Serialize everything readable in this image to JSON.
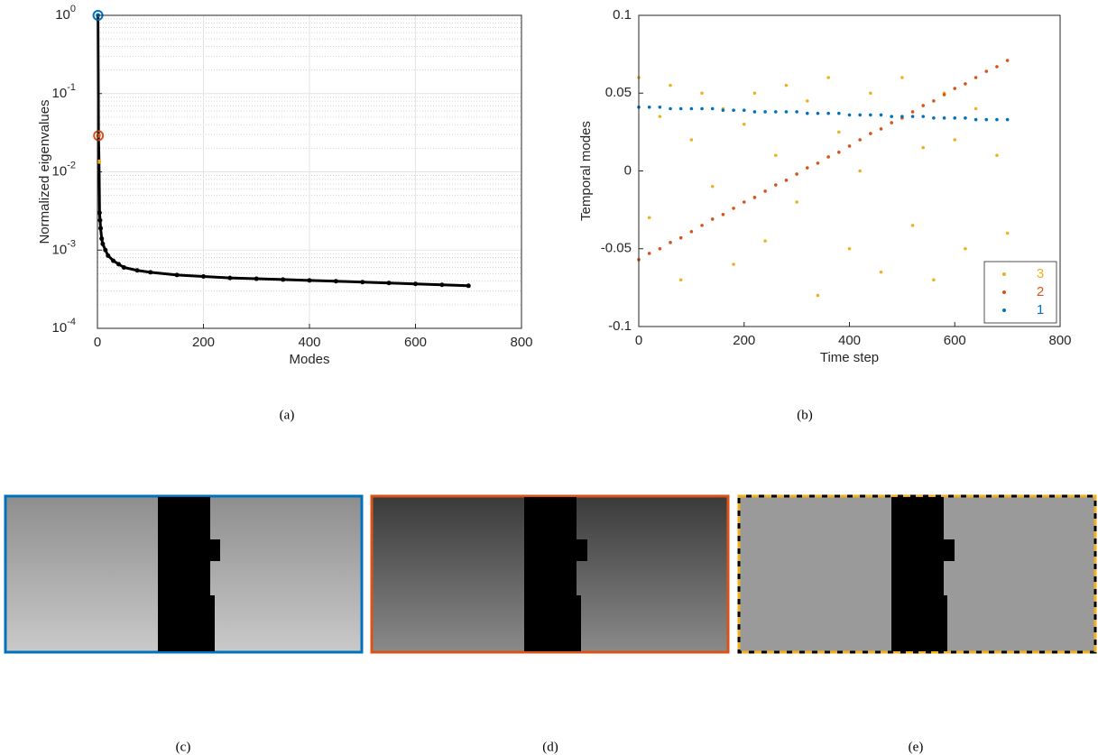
{
  "chart_data": [
    {
      "type": "scatter",
      "xlabel": "Modes",
      "ylabel": "Normalized eigenvalues",
      "yscale": "log",
      "grid": true,
      "minor_grid": true,
      "xlim": [
        0,
        800
      ],
      "xticks": [
        0,
        200,
        400,
        600,
        800
      ],
      "ylim": [
        0.0001,
        1
      ],
      "yticks": [
        {
          "value": 0.0001,
          "label": "10",
          "exponent": "-4"
        },
        {
          "value": 0.001,
          "label": "10",
          "exponent": "-3"
        },
        {
          "value": 0.01,
          "label": "10",
          "exponent": "-2"
        },
        {
          "value": 0.1,
          "label": "10",
          "exponent": "-1"
        },
        {
          "value": 1,
          "label": "10",
          "exponent": "0"
        }
      ],
      "color": "#000000",
      "highlight_colors": [
        "#0072bd",
        "#d95319",
        "#edb120"
      ],
      "x": [
        1,
        2,
        3,
        4,
        5,
        6,
        8,
        10,
        15,
        20,
        30,
        40,
        50,
        75,
        100,
        150,
        200,
        250,
        300,
        350,
        400,
        450,
        500,
        550,
        600,
        650,
        700
      ],
      "values": [
        1,
        0.029,
        0.0135,
        0.003,
        0.0024,
        0.0019,
        0.0014,
        0.0012,
        0.001,
        0.00085,
        0.00073,
        0.00066,
        0.0006,
        0.00055,
        0.00052,
        0.00048,
        0.00046,
        0.00044,
        0.00043,
        0.00042,
        0.00041,
        0.0004,
        0.00039,
        0.00038,
        0.00037,
        0.00036,
        0.00035
      ]
    },
    {
      "type": "scatter",
      "xlabel": "Time step",
      "ylabel": "Temporal modes",
      "grid": false,
      "legend": "lower right",
      "xlim": [
        0,
        800
      ],
      "xticks": [
        0,
        200,
        400,
        600,
        800
      ],
      "ylim": [
        -0.1,
        0.1
      ],
      "yticks": [
        -0.1,
        -0.05,
        0,
        0.05,
        0.1
      ],
      "x": [
        0,
        20,
        40,
        60,
        80,
        100,
        120,
        140,
        160,
        180,
        200,
        220,
        240,
        260,
        280,
        300,
        320,
        340,
        360,
        380,
        400,
        420,
        440,
        460,
        480,
        500,
        520,
        540,
        560,
        580,
        600,
        620,
        640,
        660,
        680,
        700
      ],
      "series": [
        {
          "name": "3",
          "color": "#edb120",
          "values": [
            0.06,
            -0.03,
            0.035,
            0.055,
            -0.07,
            0.02,
            0.05,
            -0.01,
            0.04,
            -0.06,
            0.03,
            0.05,
            -0.045,
            0.01,
            0.055,
            -0.02,
            0.045,
            -0.08,
            0.06,
            0.025,
            -0.05,
            0.0,
            0.05,
            -0.065,
            0.035,
            0.06,
            -0.035,
            0.015,
            -0.07,
            0.05,
            0.02,
            -0.05,
            0.04,
            -0.08,
            0.01,
            -0.04
          ]
        },
        {
          "name": "2",
          "color": "#d95319",
          "values": [
            -0.057,
            -0.053,
            -0.05,
            -0.046,
            -0.043,
            -0.039,
            -0.035,
            -0.031,
            -0.028,
            -0.024,
            -0.02,
            -0.017,
            -0.013,
            -0.009,
            -0.006,
            -0.002,
            0.002,
            0.005,
            0.009,
            0.012,
            0.016,
            0.02,
            0.024,
            0.027,
            0.031,
            0.034,
            0.038,
            0.042,
            0.045,
            0.049,
            0.053,
            0.056,
            0.06,
            0.064,
            0.067,
            0.071
          ]
        },
        {
          "name": "1",
          "color": "#0072bd",
          "values": [
            0.041,
            0.041,
            0.041,
            0.04,
            0.04,
            0.04,
            0.04,
            0.04,
            0.039,
            0.039,
            0.039,
            0.038,
            0.038,
            0.038,
            0.038,
            0.038,
            0.037,
            0.037,
            0.037,
            0.037,
            0.036,
            0.036,
            0.036,
            0.036,
            0.035,
            0.035,
            0.035,
            0.035,
            0.034,
            0.034,
            0.034,
            0.034,
            0.033,
            0.033,
            0.033,
            0.033
          ]
        }
      ]
    }
  ],
  "captions": [
    "(a)",
    "(b)",
    "(c)",
    "(d)",
    "(e)"
  ]
}
